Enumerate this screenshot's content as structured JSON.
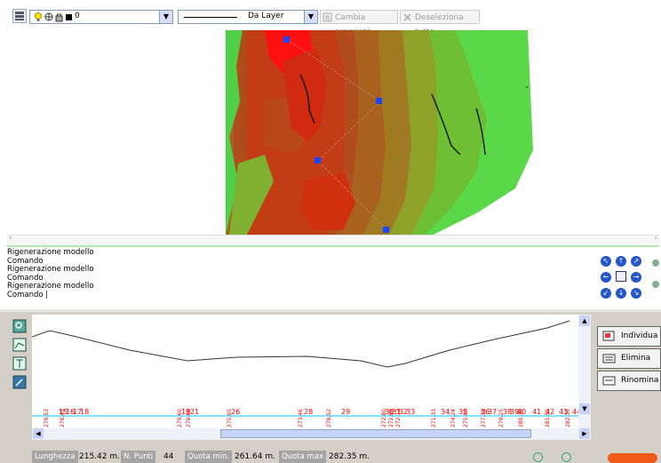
{
  "toolbar": {
    "layer_combo_value": "0",
    "linetype_combo_value": "Da Layer",
    "cambia_proprieta_label": "Cambia proprietà",
    "deseleziona_tutto_label": "Deseleziona tutto",
    "icons": [
      "layers-icon",
      "lightbulb-icon",
      "freeze-icon",
      "lock-icon",
      "color-swatch-icon"
    ]
  },
  "command": {
    "lines": [
      "Rigenerazione modello",
      "Comando",
      " Rigenerazione modello",
      "Comando",
      " Rigenerazione modello",
      "Comando  |"
    ]
  },
  "profile": {
    "station_labels": [
      "15",
      "16",
      "17",
      "18",
      "19",
      "21",
      "26",
      "28",
      "29",
      "30",
      "31",
      "32",
      "33",
      "34",
      "35",
      "36",
      "37",
      "38",
      "39",
      "40",
      "41",
      "42",
      "43",
      "44"
    ],
    "elevation_labels": [
      "279.53",
      "278.45",
      "279.60",
      "278.68",
      "275.05",
      "273.46",
      "278.52",
      "272.80",
      "272.09",
      "272.12",
      "271.33",
      "274.24",
      "275.00",
      "277.33",
      "279.25",
      "280.38",
      "281.52",
      "282.35"
    ],
    "colors": {
      "axis": "#ff0000",
      "line": "#333333",
      "guide": "#00c8ff"
    }
  },
  "side_buttons": {
    "individua": "Individua",
    "elimina": "Elimina",
    "rinomina": "Rinomina"
  },
  "status": {
    "lunghezza_label": "Lunghezza",
    "lunghezza_value": "215.42 m.",
    "n_punti_label": "N. Punti",
    "n_punti_value": "44",
    "quota_min_label": "Quota min.",
    "quota_min_value": "261.64 m.",
    "quota_max_label": "Quota max",
    "quota_max_value": "282.35 m."
  }
}
